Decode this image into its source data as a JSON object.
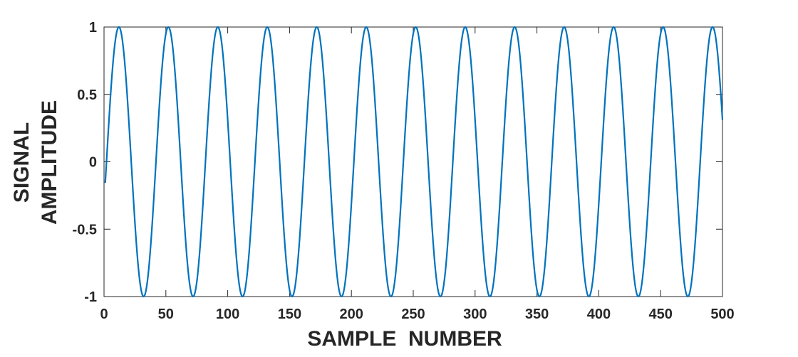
{
  "chart_data": {
    "type": "line",
    "title": "",
    "xlabel": "SAMPLE  NUMBER",
    "ylabel_lines": [
      "SIGNAL",
      "AMPLITUDE"
    ],
    "xlim": [
      0,
      500
    ],
    "ylim": [
      -1,
      1
    ],
    "xticks": [
      0,
      50,
      100,
      150,
      200,
      250,
      300,
      350,
      400,
      450,
      500
    ],
    "yticks": [
      -1,
      -0.5,
      0,
      0.5,
      1
    ],
    "xtick_labels": [
      "0",
      "50",
      "100",
      "150",
      "200",
      "250",
      "300",
      "350",
      "400",
      "450",
      "500"
    ],
    "ytick_labels": [
      "-1",
      "-0.5",
      "0",
      "0.5",
      "1"
    ],
    "grid": false,
    "legend": "none",
    "series": [
      {
        "color": "#0072bd",
        "signal": "sine",
        "amplitude": 1,
        "period_samples": 40,
        "phase_rad": -0.157,
        "x_range": [
          1,
          500
        ]
      }
    ]
  }
}
